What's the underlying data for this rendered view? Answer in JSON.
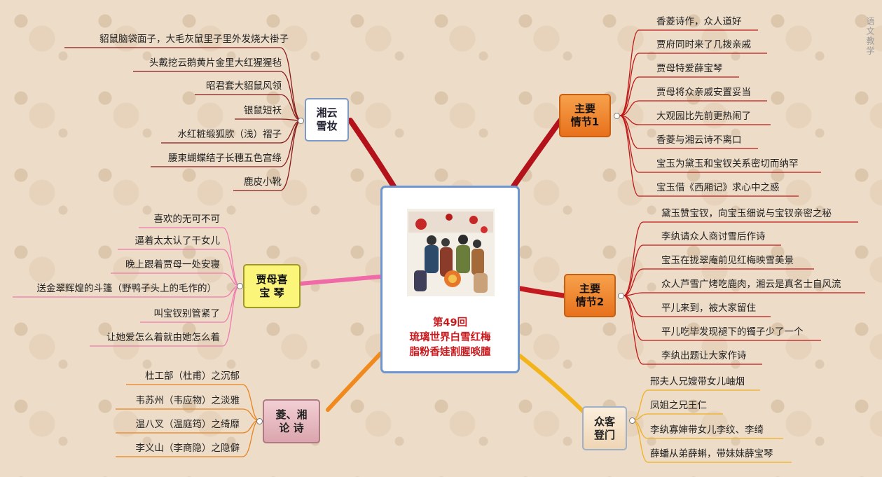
{
  "center": {
    "line1": "第49回",
    "line2": "琉璃世界白雪红梅",
    "line3": "脂粉香娃割腥啖膻"
  },
  "watermark": "语文教学",
  "branches": {
    "xiangyun": {
      "label": "湘云\n雪妆",
      "items": [
        "貂鼠脑袋面子，大毛灰鼠里子里外发烧大褂子",
        "头戴挖云鹅黄片金里大红猩猩毡",
        "昭君套大貂鼠风领",
        "银鼠短袄",
        "水红粧缎狐肷（浅）褶子",
        "腰束蝴蝶结子长穗五色宫绦",
        "鹿皮小靴"
      ]
    },
    "jiamu": {
      "label": "贾母喜\n宝  琴",
      "items": [
        "喜欢的无可不可",
        "逼着太太认了干女儿",
        "晚上跟着贾母一处安寝",
        "送金翠辉煌的斗篷（野鸭子头上的毛作的）",
        "叫宝钗别管紧了",
        "让她爱怎么着就由她怎么着"
      ]
    },
    "poetry": {
      "label": "菱、湘\n论  诗",
      "items": [
        "杜工部（杜甫）之沉郁",
        "韦苏州（韦应物）之淡雅",
        "温八叉（温庭筠）之绮靡",
        "李义山（李商隐）之隐僻"
      ]
    },
    "plot1": {
      "label": "主要\n情节1",
      "items": [
        "香菱诗作，众人道好",
        "贾府同时来了几拨亲戚",
        "贾母特爱薛宝琴",
        "贾母将众亲戚安置妥当",
        "大观园比先前更热闹了",
        "香菱与湘云诗不离口",
        "宝玉为黛玉和宝钗关系密切而纳罕",
        "宝玉借《西厢记》求心中之惑"
      ]
    },
    "plot2": {
      "label": "主要\n情节2",
      "items": [
        "黛玉赞宝钗，向宝玉细说与宝钗亲密之秘",
        "李纨请众人商讨雪后作诗",
        "宝玉在拢翠庵前见红梅映雪美景",
        "众人芦雪广烤吃鹿肉，湘云是真名士自风流",
        "平儿来到，被大家留住",
        "平儿吃毕发现褪下的镯子少了一个",
        "李纨出题让大家作诗"
      ]
    },
    "guests": {
      "label": "众客\n登门",
      "items": [
        "邢夫人兄嫂带女儿岫烟",
        "凤姐之兄王仁",
        "李纨寡婶带女儿李纹、李绮",
        "薛蟠从弟薛蝌，带妹妹薛宝琴"
      ]
    }
  },
  "colors": {
    "xiangyun_link": "#b3121b",
    "plot1_link": "#b3121b",
    "plot2_link": "#c41a1f",
    "jiamu_link": "#f06aa8",
    "poetry_link": "#f08a1e",
    "guests_link": "#f2b41a",
    "leaf_lines_left_top": "#8a1a1a",
    "leaf_lines_plot": "#c01818",
    "leaf_lines_jiamu": "#f07ab0",
    "leaf_lines_poetry": "#e9831c",
    "leaf_lines_guests": "#f0b020"
  }
}
